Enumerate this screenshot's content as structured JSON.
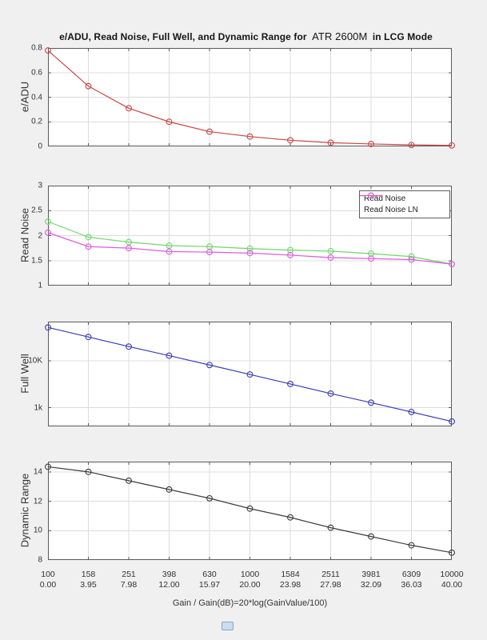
{
  "colors": {
    "background": "#f0f0f0",
    "plot_background": "#ffffff",
    "grid": "#dcdcdc",
    "axis": "#5a5a5a",
    "tick_text": "#333333",
    "eadu_line": "#c94743",
    "read_noise_line": "#6fd66a",
    "read_noise_ln_line": "#dd5cdd",
    "full_well_line": "#3c3fb4",
    "dynamic_range_line": "#3c3c3c"
  },
  "title": {
    "part1": "e/ADU, Read Noise, Full Well, and Dynamic Range for",
    "part2": "ATR 2600M",
    "part3": "in LCG Mode"
  },
  "x_axis": {
    "label": "Gain / Gain(dB)=20*log(GainValue/100)",
    "gain_ticks": [
      "100",
      "158",
      "251",
      "398",
      "630",
      "1000",
      "1584",
      "2511",
      "3981",
      "6309",
      "10000"
    ],
    "db_ticks": [
      "0.00",
      "3.95",
      "7.98",
      "12.00",
      "15.97",
      "20.00",
      "23.98",
      "27.98",
      "32.09",
      "36.03",
      "40.00"
    ]
  },
  "chart_data": [
    {
      "type": "line",
      "name": "e-adu",
      "ylabel": "e/ADU",
      "xscale": "log",
      "x": [
        100,
        158,
        251,
        398,
        630,
        1000,
        1584,
        2511,
        3981,
        6309,
        10000
      ],
      "yscale": "linear",
      "ylim": [
        0,
        0.8
      ],
      "yticks": [
        {
          "v": 0,
          "label": "0"
        },
        {
          "v": 0.2,
          "label": "0.2"
        },
        {
          "v": 0.4,
          "label": "0.4"
        },
        {
          "v": 0.6,
          "label": "0.6"
        },
        {
          "v": 0.8,
          "label": "0.8"
        }
      ],
      "grid": true,
      "series": [
        {
          "name": "e/ADU",
          "color": "#c94743",
          "marker": "circle",
          "values": [
            0.78,
            0.49,
            0.31,
            0.2,
            0.12,
            0.08,
            0.05,
            0.03,
            0.02,
            0.012,
            0.008
          ]
        }
      ]
    },
    {
      "type": "line",
      "name": "read-noise",
      "ylabel": "Read Noise",
      "xscale": "log",
      "x": [
        100,
        158,
        251,
        398,
        630,
        1000,
        1584,
        2511,
        3981,
        6309,
        10000
      ],
      "yscale": "linear",
      "ylim": [
        1,
        3
      ],
      "yticks": [
        {
          "v": 1,
          "label": "1"
        },
        {
          "v": 1.5,
          "label": "1.5"
        },
        {
          "v": 2,
          "label": "2"
        },
        {
          "v": 2.5,
          "label": "2.5"
        },
        {
          "v": 3,
          "label": "3"
        }
      ],
      "grid": true,
      "legend": {
        "location": "northeast",
        "entries": [
          "Read Noise",
          "Read Noise LN"
        ]
      },
      "series": [
        {
          "name": "Read Noise",
          "color": "#6fd66a",
          "marker": "circle",
          "values": [
            2.28,
            1.97,
            1.87,
            1.8,
            1.78,
            1.74,
            1.71,
            1.69,
            1.64,
            1.58,
            1.43
          ]
        },
        {
          "name": "Read Noise LN",
          "color": "#dd5cdd",
          "marker": "circle",
          "values": [
            2.06,
            1.78,
            1.75,
            1.68,
            1.67,
            1.65,
            1.61,
            1.56,
            1.54,
            1.52,
            1.43
          ]
        }
      ]
    },
    {
      "type": "line",
      "name": "full-well",
      "ylabel": "Full Well",
      "xscale": "log",
      "x": [
        100,
        158,
        251,
        398,
        630,
        1000,
        1584,
        2511,
        3981,
        6309,
        10000
      ],
      "yscale": "log",
      "ylim": [
        400,
        68000
      ],
      "yticks": [
        {
          "v": 10000,
          "label": "10K"
        },
        {
          "v": 1000,
          "label": "1k"
        }
      ],
      "grid": true,
      "series": [
        {
          "name": "Full Well",
          "color": "#3c3fb4",
          "marker": "circle",
          "values": [
            51000,
            32000,
            20000,
            12800,
            8100,
            5100,
            3200,
            2000,
            1280,
            810,
            510
          ]
        }
      ]
    },
    {
      "type": "line",
      "name": "dynamic-range",
      "ylabel": "Dynamic Range",
      "xscale": "log",
      "x": [
        100,
        158,
        251,
        398,
        630,
        1000,
        1584,
        2511,
        3981,
        6309,
        10000
      ],
      "yscale": "linear",
      "ylim": [
        8,
        14.7
      ],
      "yticks": [
        {
          "v": 8,
          "label": "8"
        },
        {
          "v": 10,
          "label": "10"
        },
        {
          "v": 12,
          "label": "12"
        },
        {
          "v": 14,
          "label": "14"
        }
      ],
      "grid": true,
      "series": [
        {
          "name": "Dynamic Range",
          "color": "#3c3c3c",
          "marker": "circle",
          "values": [
            14.35,
            14.0,
            13.4,
            12.8,
            12.2,
            11.5,
            10.9,
            10.2,
            9.6,
            9.0,
            8.5
          ]
        }
      ]
    }
  ]
}
